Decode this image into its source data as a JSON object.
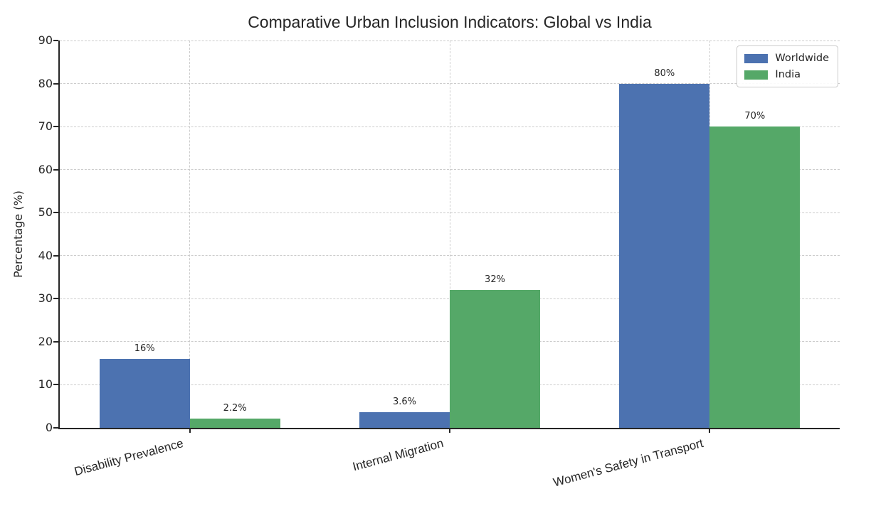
{
  "chart_data": {
    "type": "bar",
    "title": "Comparative Urban Inclusion Indicators: Global vs India",
    "xlabel": "",
    "ylabel": "Percentage (%)",
    "categories": [
      "Disability Prevalence",
      "Internal Migration",
      "Women's Safety in Transport"
    ],
    "series": [
      {
        "name": "Worldwide",
        "color": "#4C72B0",
        "values": [
          16,
          3.6,
          80
        ],
        "labels": [
          "16%",
          "3.6%",
          "80%"
        ]
      },
      {
        "name": "India",
        "color": "#55A868",
        "values": [
          2.2,
          32,
          70
        ],
        "labels": [
          "2.2%",
          "32%",
          "70%"
        ]
      }
    ],
    "ylim": [
      0,
      90
    ],
    "yticks": [
      0,
      10,
      20,
      30,
      40,
      50,
      60,
      70,
      80,
      90
    ],
    "grid": true,
    "grid_style": "dashed",
    "legend_position": "upper right",
    "colors": {
      "axis": "#262626",
      "grid": "#cccccc",
      "text": "#262626",
      "background": "#ffffff"
    }
  }
}
